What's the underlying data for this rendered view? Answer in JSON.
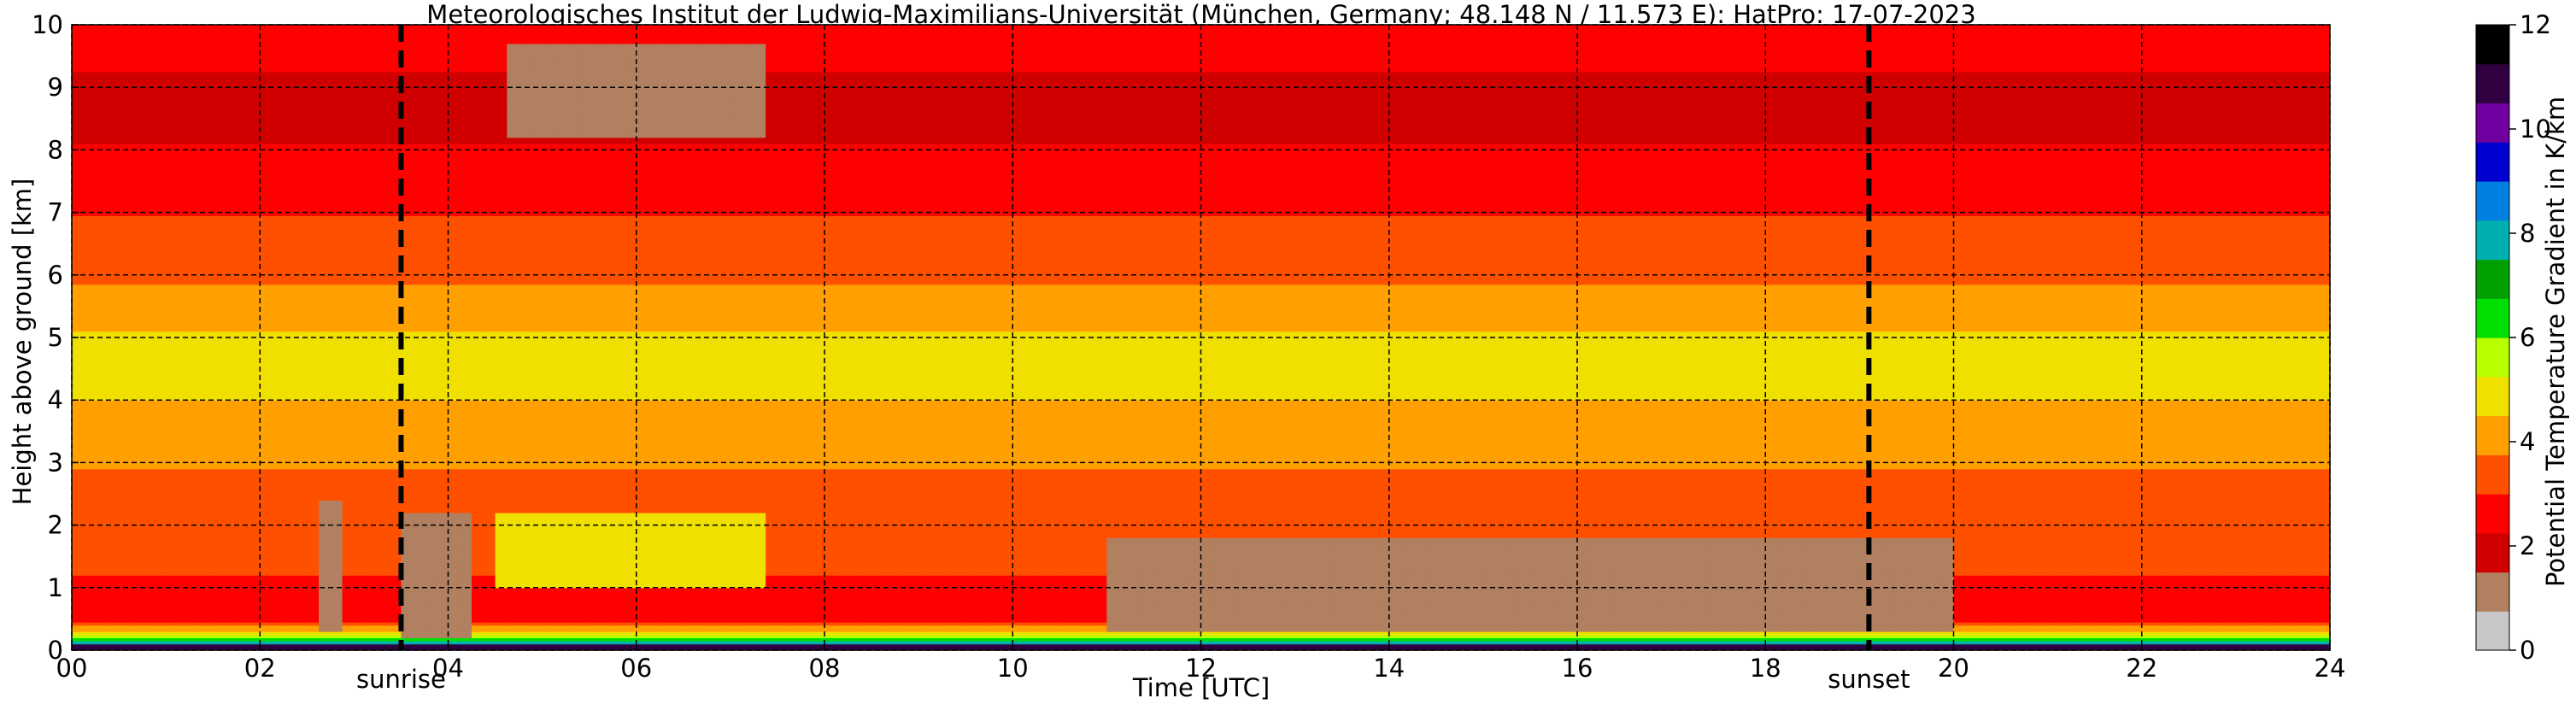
{
  "chart_data": {
    "type": "heatmap",
    "title": "Meteorologisches Institut der Ludwig-Maximilians-Universität (München, Germany; 48.148 N / 11.573 E):    HatPro: 17-07-2023",
    "xlabel": "Time [UTC]",
    "ylabel": "Height above ground [km]",
    "xlim": [
      0,
      24
    ],
    "ylim": [
      0,
      10
    ],
    "x_ticks": [
      0,
      2,
      4,
      6,
      8,
      10,
      12,
      14,
      16,
      18,
      20,
      22,
      24
    ],
    "x_tick_labels": [
      "00",
      "02",
      "04",
      "06",
      "08",
      "10",
      "12",
      "14",
      "16",
      "18",
      "20",
      "22",
      "24"
    ],
    "y_ticks": [
      0,
      1,
      2,
      3,
      4,
      5,
      6,
      7,
      8,
      9,
      10
    ],
    "y_tick_labels": [
      "0",
      "1",
      "2",
      "3",
      "4",
      "5",
      "6",
      "7",
      "8",
      "9",
      "10"
    ],
    "grid": true,
    "annotations": [
      {
        "label": "sunrise",
        "x": 3.5
      },
      {
        "label": "sunset",
        "x": 19.1
      }
    ],
    "colorbar": {
      "label": "Potential Temperature Gradient in K/km",
      "range": [
        0,
        12
      ],
      "ticks": [
        0,
        2,
        4,
        6,
        8,
        10,
        12
      ],
      "tick_labels": [
        "0",
        "2",
        "4",
        "6",
        "8",
        "10",
        "12"
      ],
      "colors": [
        "#c8c8c8",
        "#b08060",
        "#d00000",
        "#ff0000",
        "#ff5000",
        "#ffa000",
        "#f0e000",
        "#b8ff00",
        "#00e000",
        "#00a000",
        "#00b0b0",
        "#0080e0",
        "#0000d0",
        "#7000a0",
        "#300040",
        "#000000"
      ]
    },
    "profile": {
      "heights_km": [
        0,
        0.1,
        0.2,
        0.3,
        0.45,
        0.8,
        1.2,
        2,
        2.8,
        3.3,
        3.8,
        4.3,
        5,
        5.5,
        6.5,
        7.5,
        8.2,
        9,
        9.6,
        10
      ],
      "gradients_K_per_km": [
        11,
        8.5,
        6,
        4.5,
        3,
        2.8,
        3,
        3.3,
        3.6,
        4.4,
        4.2,
        4.9,
        4.6,
        4,
        3.3,
        2.6,
        2.2,
        2.0,
        2.6,
        3
      ]
    },
    "features": [
      {
        "t0": 11,
        "t1": 20,
        "h0": 0.3,
        "h1": 1.8,
        "gradient": 1.0
      },
      {
        "t0": 3.5,
        "t1": 4.2,
        "h0": 0.2,
        "h1": 2.2,
        "gradient": 1.0
      },
      {
        "t0": 4.6,
        "t1": 7.4,
        "h0": 8.2,
        "h1": 9.7,
        "gradient": 1.4
      },
      {
        "t0": 4.5,
        "t1": 7.4,
        "h0": 1.0,
        "h1": 2.2,
        "gradient": 4.8
      },
      {
        "t0": 2.6,
        "t1": 2.9,
        "h0": 0.3,
        "h1": 2.4,
        "gradient": 1.0
      },
      {
        "t0": 0,
        "t1": 24,
        "h0": 0,
        "h1": 0.12,
        "gradient": 11
      }
    ]
  }
}
